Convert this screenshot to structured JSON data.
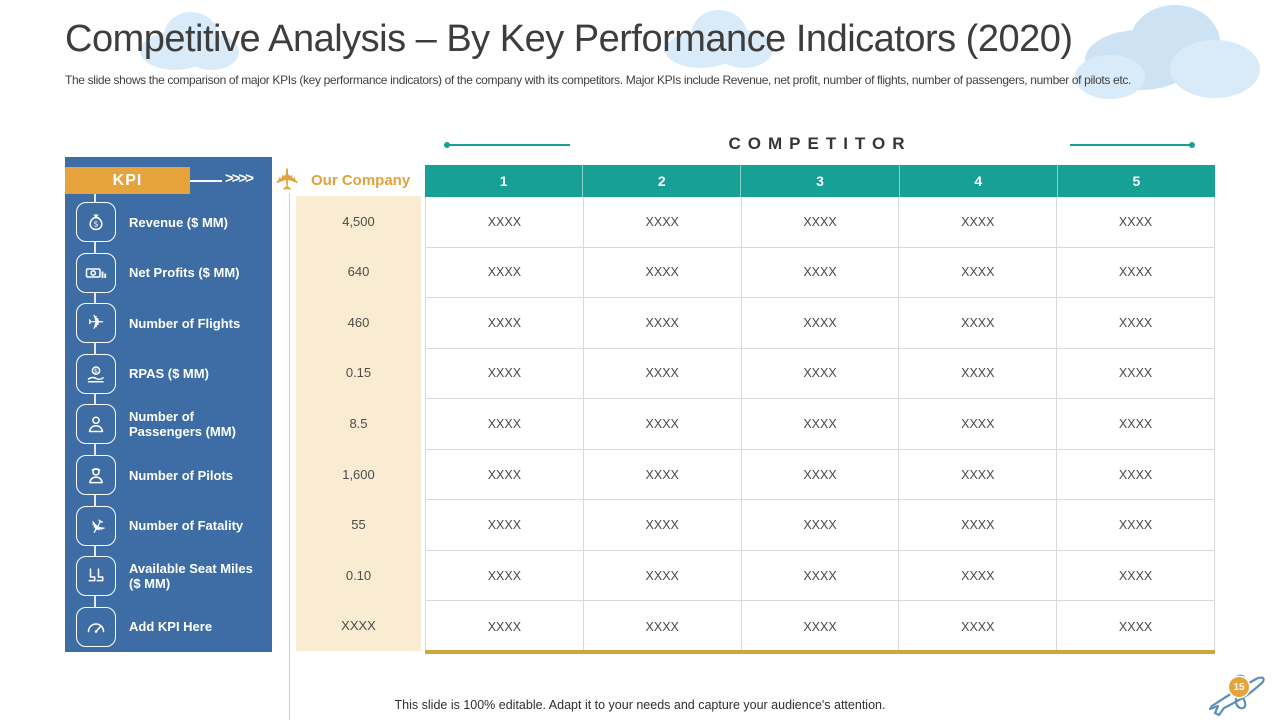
{
  "slide": {
    "title": "Competitive Analysis – By Key Performance Indicators (2020)",
    "subtitle": "The slide shows the comparison of major KPIs (key performance indicators) of the company with its competitors. Major KPIs include Revenue, net profit, number of flights, number of passengers, number of pilots etc.",
    "footer": "This slide is 100% editable. Adapt it to your needs and capture your audience's attention.",
    "page_number": "15"
  },
  "kpi_panel": {
    "header_label": "KPI",
    "chevrons": ">>>>",
    "items": [
      {
        "label": "Revenue ($ MM)",
        "icon": "money-bag-icon",
        "our_value": "4,500",
        "competitor_values": [
          "XXXX",
          "XXXX",
          "XXXX",
          "XXXX",
          "XXXX"
        ]
      },
      {
        "label": "Net Profits ($ MM)",
        "icon": "banknote-icon",
        "our_value": "640",
        "competitor_values": [
          "XXXX",
          "XXXX",
          "XXXX",
          "XXXX",
          "XXXX"
        ]
      },
      {
        "label": "Number of Flights",
        "icon": "plane-icon",
        "our_value": "460",
        "competitor_values": [
          "XXXX",
          "XXXX",
          "XXXX",
          "XXXX",
          "XXXX"
        ]
      },
      {
        "label": "RPAS ($ MM)",
        "icon": "hand-money-icon",
        "our_value": "0.15",
        "competitor_values": [
          "XXXX",
          "XXXX",
          "XXXX",
          "XXXX",
          "XXXX"
        ]
      },
      {
        "label": "Number of Passengers (MM)",
        "icon": "passenger-icon",
        "our_value": "8.5",
        "competitor_values": [
          "XXXX",
          "XXXX",
          "XXXX",
          "XXXX",
          "XXXX"
        ]
      },
      {
        "label": "Number of Pilots",
        "icon": "pilot-icon",
        "our_value": "1,600",
        "competitor_values": [
          "XXXX",
          "XXXX",
          "XXXX",
          "XXXX",
          "XXXX"
        ]
      },
      {
        "label": "Number of Fatality",
        "icon": "crash-icon",
        "our_value": "55",
        "competitor_values": [
          "XXXX",
          "XXXX",
          "XXXX",
          "XXXX",
          "XXXX"
        ]
      },
      {
        "label": "Available Seat Miles ($ MM)",
        "icon": "seats-icon",
        "our_value": "0.10",
        "competitor_values": [
          "XXXX",
          "XXXX",
          "XXXX",
          "XXXX",
          "XXXX"
        ]
      },
      {
        "label": "Add KPI Here",
        "icon": "gauge-icon",
        "our_value": "XXXX",
        "competitor_values": [
          "XXXX",
          "XXXX",
          "XXXX",
          "XXXX",
          "XXXX"
        ]
      }
    ]
  },
  "our_company": {
    "label": "Our Company"
  },
  "competitor": {
    "title": "COMPETITOR",
    "columns": [
      "1",
      "2",
      "3",
      "4",
      "5"
    ]
  },
  "colors": {
    "panel_blue": "#3e6da5",
    "teal": "#17a095",
    "accent_orange": "#e7a33b",
    "cream": "#faecd2",
    "gold_underline": "#d2a43c"
  }
}
